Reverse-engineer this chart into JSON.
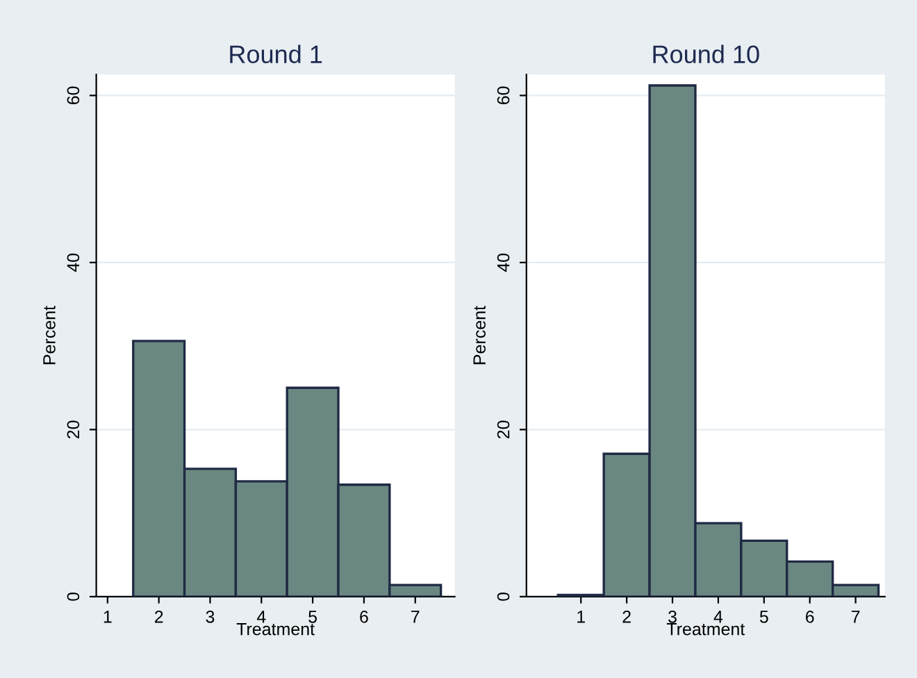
{
  "chart_data": [
    {
      "type": "histogram",
      "title": "Round 1",
      "xlabel": "Treatment",
      "ylabel": "Percent",
      "bins": [
        1.5,
        2.5,
        3.5,
        4.5,
        5.5,
        6.5,
        7.5
      ],
      "values": [
        30.6,
        15.3,
        13.8,
        25.0,
        13.4,
        1.4
      ],
      "color": "#6b8781",
      "xlim": [
        0.78,
        7.77
      ],
      "xticks": [
        1,
        2,
        3,
        4,
        5,
        6,
        7
      ],
      "ylim": [
        0,
        62.5
      ],
      "yticks": [
        0,
        20,
        40,
        60
      ],
      "grid": "y"
    },
    {
      "type": "histogram",
      "title": "Round 10",
      "xlabel": "Treatment",
      "ylabel": "Percent",
      "bins": [
        0.5,
        1.5,
        2.5,
        3.5,
        4.5,
        5.5,
        6.5,
        7.5
      ],
      "values": [
        0.2,
        17.1,
        61.2,
        8.8,
        6.7,
        4.2,
        1.4
      ],
      "color": "#6b8781",
      "xlim": [
        -0.19,
        7.64
      ],
      "xticks": [
        1,
        2,
        3,
        4,
        5,
        6,
        7
      ],
      "ylim": [
        0,
        62.5
      ],
      "yticks": [
        0,
        20,
        40,
        60
      ],
      "grid": "y"
    }
  ]
}
